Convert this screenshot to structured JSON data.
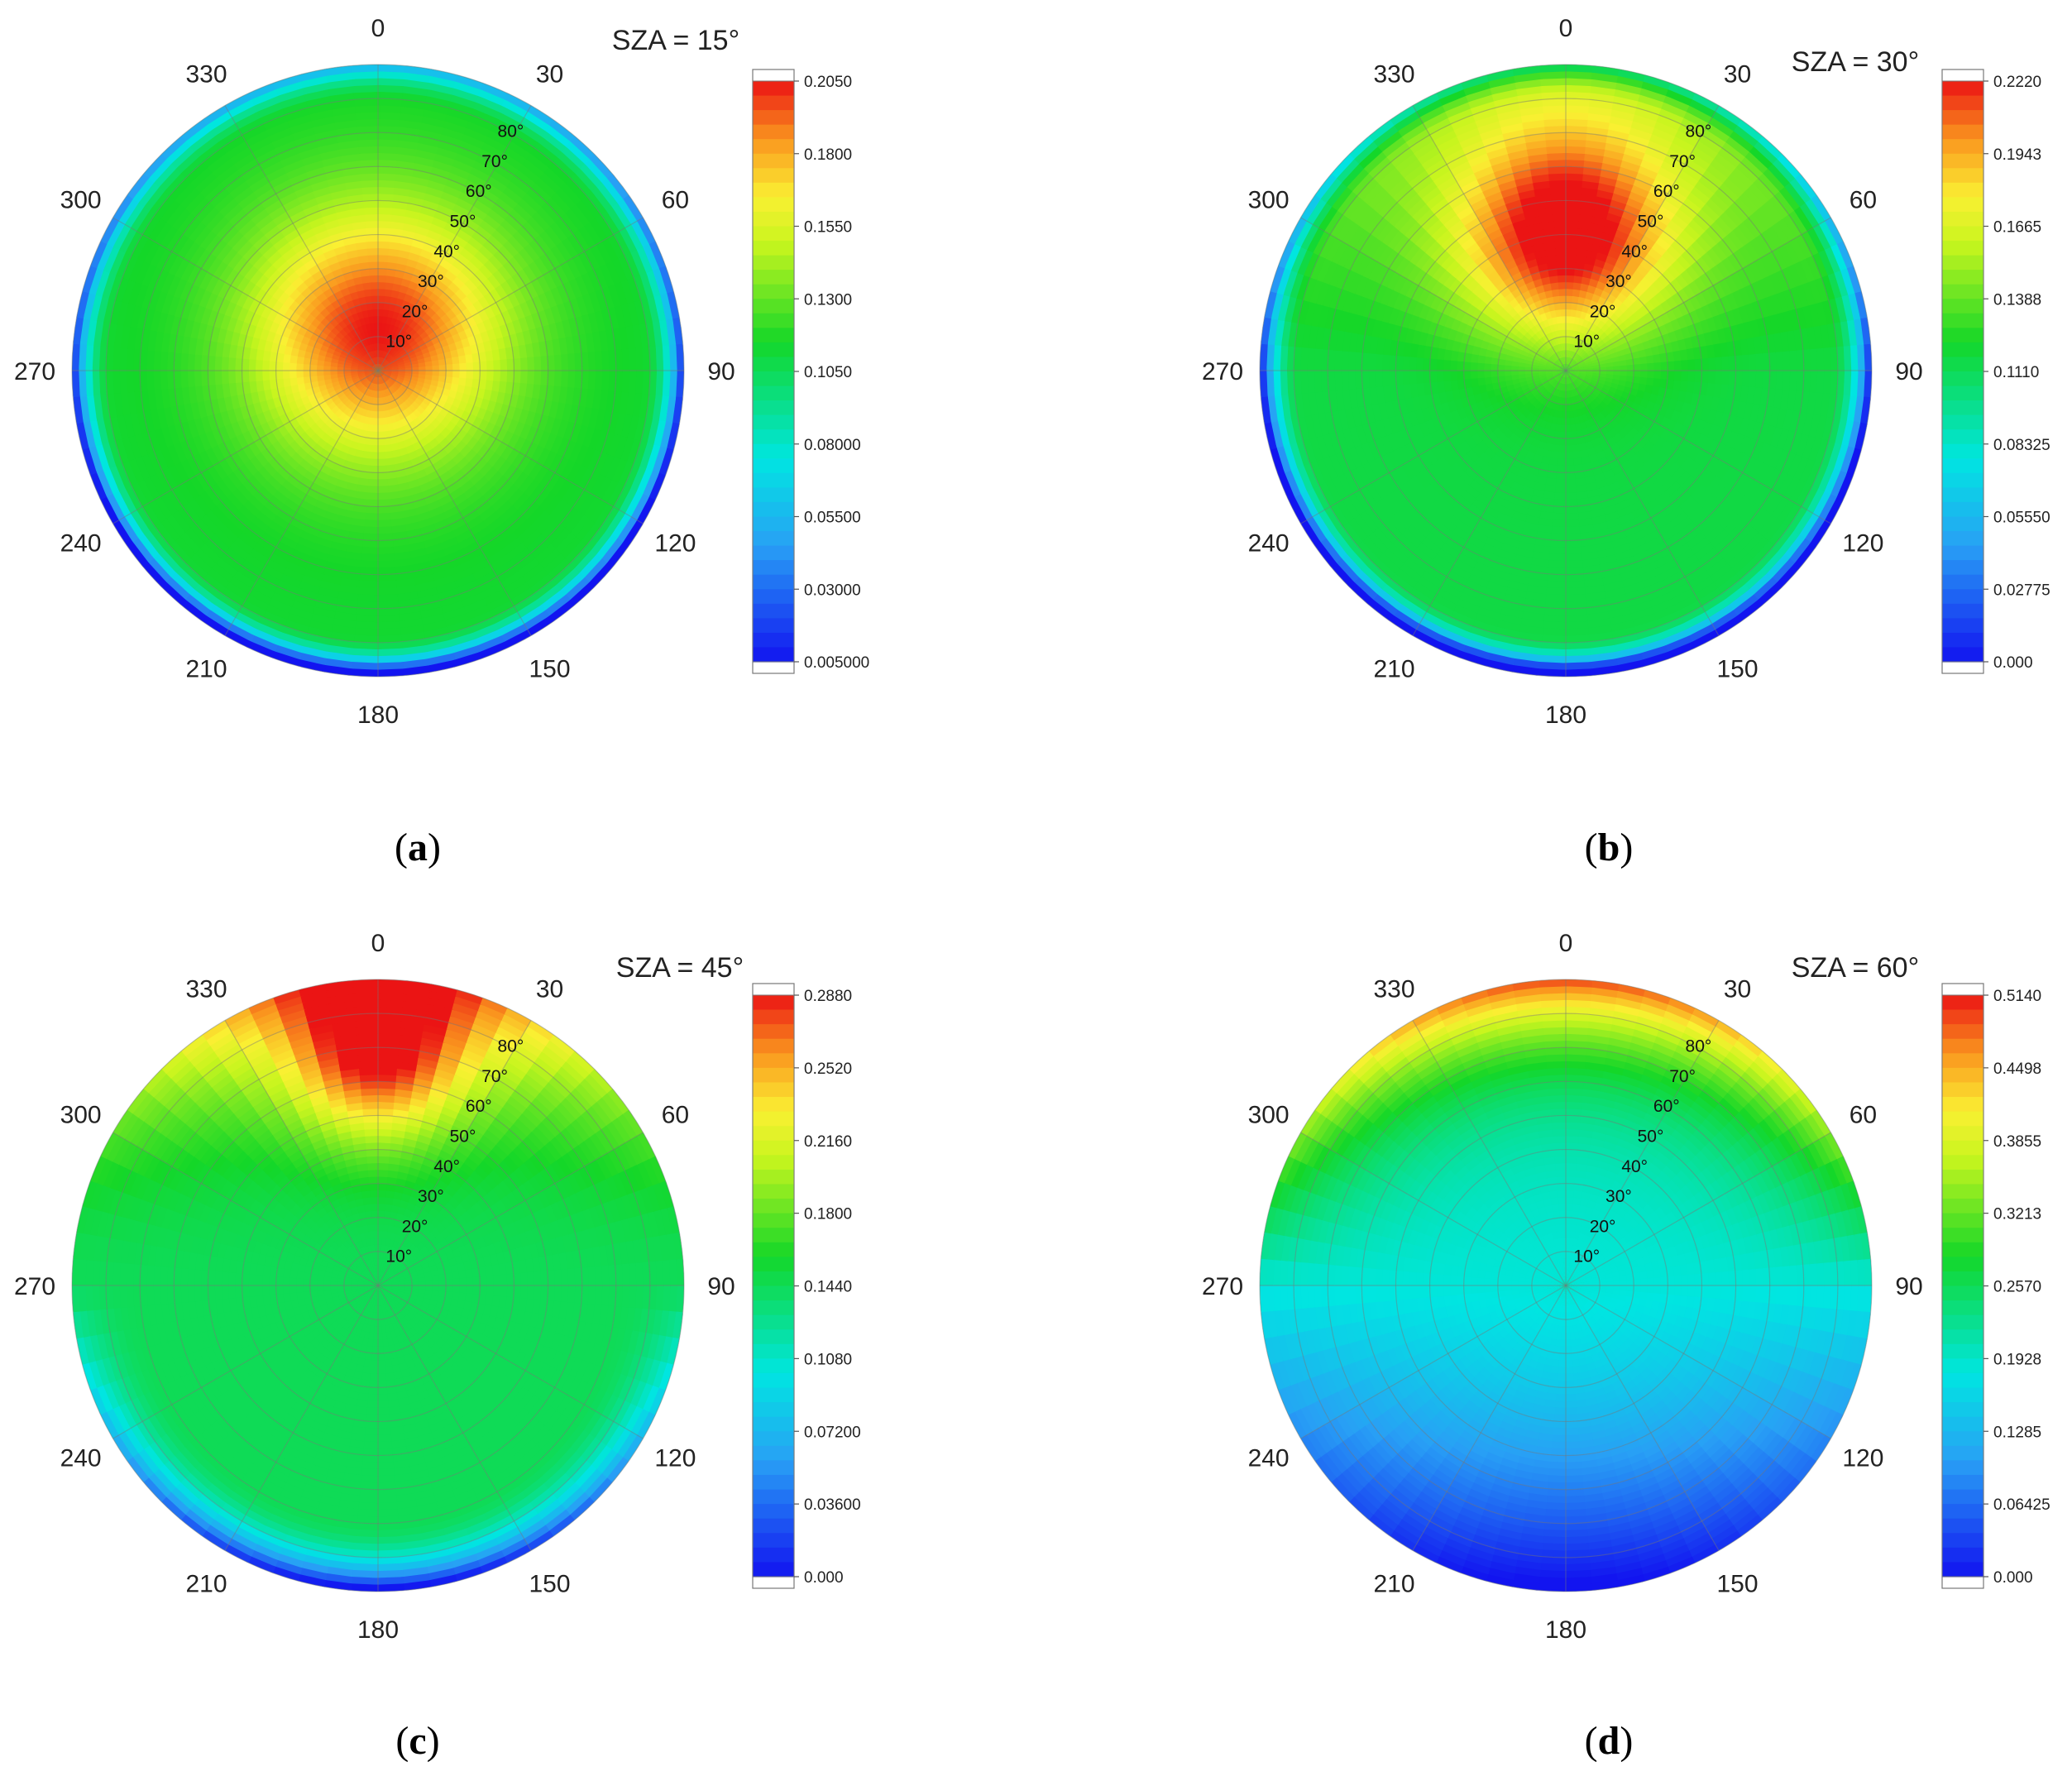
{
  "chart_data": [
    {
      "type": "heatmap",
      "projection": "polar",
      "title": "SZA = 15°",
      "panel_label": "a",
      "azimuth_ticks": [
        "0",
        "30",
        "60",
        "90",
        "120",
        "150",
        "180",
        "210",
        "240",
        "270",
        "300",
        "330"
      ],
      "zenith_ring_labels": [
        "10°",
        "20°",
        "30°",
        "40°",
        "50°",
        "60°",
        "70°",
        "80°"
      ],
      "colorbar": {
        "min": 0.005,
        "max": 0.205,
        "tick_labels": [
          "0.2050",
          "0.1800",
          "0.1550",
          "0.1300",
          "0.1050",
          "0.08000",
          "0.05500",
          "0.03000",
          "0.005000"
        ]
      },
      "peak": {
        "azimuth": 0,
        "zenith": 12,
        "value": 0.205
      }
    },
    {
      "type": "heatmap",
      "projection": "polar",
      "title": "SZA = 30°",
      "panel_label": "b",
      "azimuth_ticks": [
        "0",
        "30",
        "60",
        "90",
        "120",
        "150",
        "180",
        "210",
        "240",
        "270",
        "300",
        "330"
      ],
      "zenith_ring_labels": [
        "10°",
        "20°",
        "30°",
        "40°",
        "50°",
        "60°",
        "70°",
        "80°"
      ],
      "colorbar": {
        "min": 0.0,
        "max": 0.222,
        "tick_labels": [
          "0.2220",
          "0.1943",
          "0.1665",
          "0.1388",
          "0.1110",
          "0.08325",
          "0.05550",
          "0.02775",
          "0.000"
        ]
      },
      "peak": {
        "azimuth": 0,
        "zenith": 40,
        "value": 0.222
      }
    },
    {
      "type": "heatmap",
      "projection": "polar",
      "title": "SZA = 45°",
      "panel_label": "c",
      "azimuth_ticks": [
        "0",
        "30",
        "60",
        "90",
        "120",
        "150",
        "180",
        "210",
        "240",
        "270",
        "300",
        "330"
      ],
      "zenith_ring_labels": [
        "10°",
        "20°",
        "30°",
        "40°",
        "50°",
        "60°",
        "70°",
        "80°"
      ],
      "colorbar": {
        "min": 0.0,
        "max": 0.288,
        "tick_labels": [
          "0.2880",
          "0.2520",
          "0.2160",
          "0.1800",
          "0.1440",
          "0.1080",
          "0.07200",
          "0.03600",
          "0.000"
        ]
      },
      "peak": {
        "azimuth": 0,
        "zenith": 65,
        "value": 0.288
      }
    },
    {
      "type": "heatmap",
      "projection": "polar",
      "title": "SZA = 60°",
      "panel_label": "d",
      "azimuth_ticks": [
        "0",
        "30",
        "60",
        "90",
        "120",
        "150",
        "180",
        "210",
        "240",
        "270",
        "300",
        "330"
      ],
      "zenith_ring_labels": [
        "10°",
        "20°",
        "30°",
        "40°",
        "50°",
        "60°",
        "70°",
        "80°"
      ],
      "colorbar": {
        "min": 0.0,
        "max": 0.514,
        "tick_labels": [
          "0.5140",
          "0.4498",
          "0.3855",
          "0.3213",
          "0.2570",
          "0.1928",
          "0.1285",
          "0.06425",
          "0.000"
        ]
      },
      "peak": {
        "azimuth": 0,
        "zenith": 90,
        "value": 0.514
      }
    }
  ]
}
